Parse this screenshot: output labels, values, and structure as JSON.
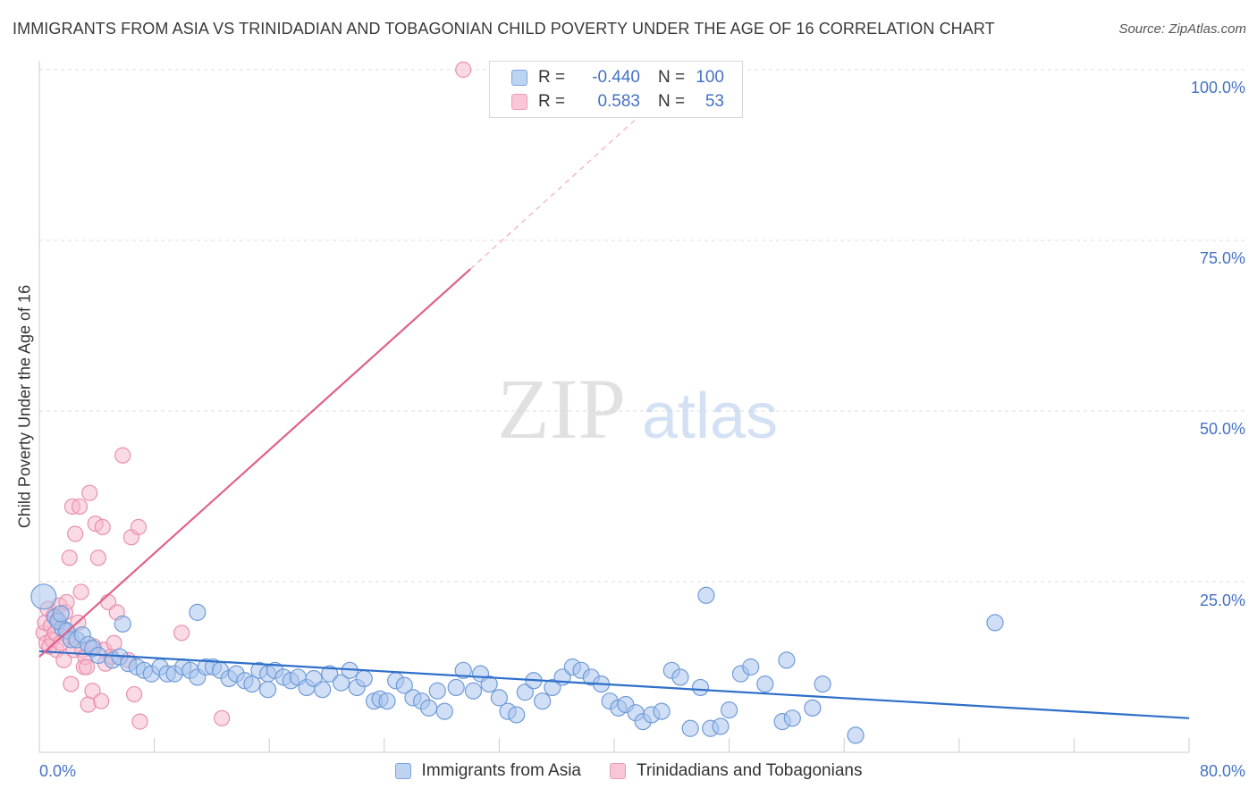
{
  "title": "IMMIGRANTS FROM ASIA VS TRINIDADIAN AND TOBAGONIAN CHILD POVERTY UNDER THE AGE OF 16 CORRELATION CHART",
  "source": "Source: ZipAtlas.com",
  "watermark": {
    "zip": "ZIP",
    "atlas": "atlas"
  },
  "legend": {
    "rows": [
      {
        "r_label": "R =",
        "r_value": "-0.440",
        "n_label": "N =",
        "n_value": "100"
      },
      {
        "r_label": "R =",
        "r_value": "0.583",
        "n_label": "N =",
        "n_value": "53"
      }
    ]
  },
  "colors": {
    "asia_fill": "#a9c4ec",
    "asia_stroke": "#6f9bd8",
    "asia_line": "#2e6fc9",
    "tt_fill": "#f6b8cb",
    "tt_stroke": "#e98fae",
    "tt_line": "#e0608a",
    "axis_text": "#4472c4",
    "grid": "#dddddd"
  },
  "chart_data": {
    "type": "scatter",
    "title": "IMMIGRANTS FROM ASIA VS TRINIDADIAN AND TOBAGONIAN CHILD POVERTY UNDER THE AGE OF 16 CORRELATION CHART",
    "xlabel": "",
    "ylabel": "Child Poverty Under the Age of 16",
    "xlim": [
      0,
      80
    ],
    "ylim": [
      0,
      100
    ],
    "x_tick_labels": [
      "0.0%",
      "80.0%"
    ],
    "y_tick_labels": [
      "100.0%",
      "75.0%",
      "50.0%",
      "25.0%"
    ],
    "y_ticks": [
      100,
      75,
      50,
      25
    ],
    "grid": true,
    "legend_position": "top-center",
    "series": [
      {
        "name": "Immigrants from Asia",
        "r": -0.44,
        "n": 100,
        "trend": {
          "x": [
            0,
            80
          ],
          "y": [
            14.8,
            5.0
          ]
        },
        "points": [
          [
            0.3,
            22.8
          ],
          [
            1.1,
            19.8
          ],
          [
            1.6,
            18.2
          ],
          [
            1.3,
            19.2
          ],
          [
            1.9,
            17.8
          ],
          [
            2.2,
            16.5
          ],
          [
            2.6,
            16.5
          ],
          [
            3.0,
            17.2
          ],
          [
            3.4,
            15.8
          ],
          [
            3.7,
            15.2
          ],
          [
            4.1,
            14.2
          ],
          [
            5.1,
            13.5
          ],
          [
            5.6,
            14.0
          ],
          [
            6.2,
            13.0
          ],
          [
            6.8,
            12.5
          ],
          [
            7.3,
            12.0
          ],
          [
            7.8,
            11.5
          ],
          [
            8.4,
            12.5
          ],
          [
            8.9,
            11.5
          ],
          [
            9.4,
            11.5
          ],
          [
            10.0,
            12.5
          ],
          [
            10.5,
            12.0
          ],
          [
            11.0,
            11.0
          ],
          [
            11.6,
            12.5
          ],
          [
            12.1,
            12.5
          ],
          [
            12.6,
            12.0
          ],
          [
            13.2,
            10.8
          ],
          [
            13.7,
            11.5
          ],
          [
            14.3,
            10.5
          ],
          [
            14.8,
            10.0
          ],
          [
            15.3,
            12.0
          ],
          [
            15.9,
            11.5
          ],
          [
            16.4,
            12.0
          ],
          [
            17.0,
            11.0
          ],
          [
            17.5,
            10.5
          ],
          [
            18.0,
            11.0
          ],
          [
            18.6,
            9.5
          ],
          [
            19.1,
            10.8
          ],
          [
            19.7,
            9.2
          ],
          [
            20.2,
            11.5
          ],
          [
            21.0,
            10.2
          ],
          [
            21.6,
            12.0
          ],
          [
            22.1,
            9.5
          ],
          [
            22.6,
            10.8
          ],
          [
            23.3,
            7.5
          ],
          [
            23.7,
            7.8
          ],
          [
            24.2,
            7.5
          ],
          [
            24.8,
            10.5
          ],
          [
            25.4,
            9.8
          ],
          [
            26.0,
            8.0
          ],
          [
            26.6,
            7.5
          ],
          [
            27.1,
            6.5
          ],
          [
            27.7,
            9.0
          ],
          [
            28.2,
            6.0
          ],
          [
            29.0,
            9.5
          ],
          [
            29.5,
            12.0
          ],
          [
            30.2,
            9.0
          ],
          [
            30.7,
            11.5
          ],
          [
            31.3,
            10.0
          ],
          [
            32.0,
            8.0
          ],
          [
            32.6,
            6.0
          ],
          [
            33.2,
            5.5
          ],
          [
            33.8,
            8.8
          ],
          [
            34.4,
            10.5
          ],
          [
            35.0,
            7.5
          ],
          [
            35.7,
            9.5
          ],
          [
            36.4,
            11.0
          ],
          [
            37.1,
            12.5
          ],
          [
            37.7,
            12.0
          ],
          [
            38.4,
            11.0
          ],
          [
            39.1,
            10.0
          ],
          [
            39.7,
            7.5
          ],
          [
            40.3,
            6.5
          ],
          [
            40.8,
            7.0
          ],
          [
            41.5,
            5.8
          ],
          [
            42.0,
            4.5
          ],
          [
            42.6,
            5.5
          ],
          [
            43.3,
            6.0
          ],
          [
            44.0,
            12.0
          ],
          [
            44.6,
            11.0
          ],
          [
            45.3,
            3.5
          ],
          [
            46.0,
            9.5
          ],
          [
            46.7,
            3.5
          ],
          [
            47.4,
            3.8
          ],
          [
            48.0,
            6.2
          ],
          [
            48.8,
            11.5
          ],
          [
            49.5,
            12.5
          ],
          [
            50.5,
            10.0
          ],
          [
            51.7,
            4.5
          ],
          [
            52.4,
            5.0
          ],
          [
            53.8,
            6.5
          ],
          [
            54.5,
            10.0
          ],
          [
            1.5,
            20.3
          ],
          [
            5.8,
            18.8
          ],
          [
            11.0,
            20.5
          ],
          [
            15.9,
            9.2
          ],
          [
            46.4,
            23.0
          ],
          [
            66.5,
            19.0
          ],
          [
            56.8,
            2.5
          ],
          [
            52.0,
            13.5
          ]
        ]
      },
      {
        "name": "Trinidadians and Tobagonians",
        "r": 0.583,
        "n": 53,
        "trend": {
          "x": [
            0,
            30
          ],
          "y": [
            14.0,
            70.8
          ]
        },
        "trend_dashed": {
          "x": [
            30,
            44
          ],
          "y": [
            70.8,
            97.5
          ]
        },
        "points": [
          [
            0.3,
            17.5
          ],
          [
            0.4,
            19.0
          ],
          [
            0.5,
            16.0
          ],
          [
            0.6,
            21.0
          ],
          [
            0.7,
            15.5
          ],
          [
            0.8,
            18.5
          ],
          [
            0.9,
            16.5
          ],
          [
            1.0,
            20.0
          ],
          [
            1.1,
            17.5
          ],
          [
            1.2,
            15.0
          ],
          [
            1.3,
            19.5
          ],
          [
            1.4,
            21.5
          ],
          [
            1.5,
            16.0
          ],
          [
            1.6,
            18.0
          ],
          [
            1.7,
            13.5
          ],
          [
            1.8,
            20.5
          ],
          [
            1.9,
            22.0
          ],
          [
            2.0,
            17.0
          ],
          [
            2.1,
            28.5
          ],
          [
            2.2,
            10.0
          ],
          [
            2.3,
            36.0
          ],
          [
            2.4,
            15.0
          ],
          [
            2.5,
            32.0
          ],
          [
            2.7,
            19.0
          ],
          [
            2.8,
            36.0
          ],
          [
            2.9,
            23.5
          ],
          [
            3.0,
            15.0
          ],
          [
            3.1,
            12.5
          ],
          [
            3.2,
            14.0
          ],
          [
            3.3,
            12.5
          ],
          [
            3.4,
            7.0
          ],
          [
            3.5,
            38.0
          ],
          [
            3.7,
            9.0
          ],
          [
            3.8,
            15.5
          ],
          [
            3.9,
            33.5
          ],
          [
            4.1,
            28.5
          ],
          [
            4.3,
            7.5
          ],
          [
            4.4,
            33.0
          ],
          [
            4.5,
            15.0
          ],
          [
            4.6,
            13.0
          ],
          [
            4.8,
            22.0
          ],
          [
            5.0,
            14.0
          ],
          [
            5.2,
            16.0
          ],
          [
            5.4,
            20.5
          ],
          [
            5.8,
            43.5
          ],
          [
            6.2,
            13.5
          ],
          [
            6.4,
            31.5
          ],
          [
            6.6,
            8.5
          ],
          [
            6.9,
            33.0
          ],
          [
            7.0,
            4.5
          ],
          [
            9.9,
            17.5
          ],
          [
            12.7,
            5.0
          ],
          [
            29.5,
            100.0
          ]
        ]
      }
    ]
  },
  "bottom_legend": [
    {
      "label": "Immigrants from Asia"
    },
    {
      "label": "Trinidadians and Tobagonians"
    }
  ]
}
